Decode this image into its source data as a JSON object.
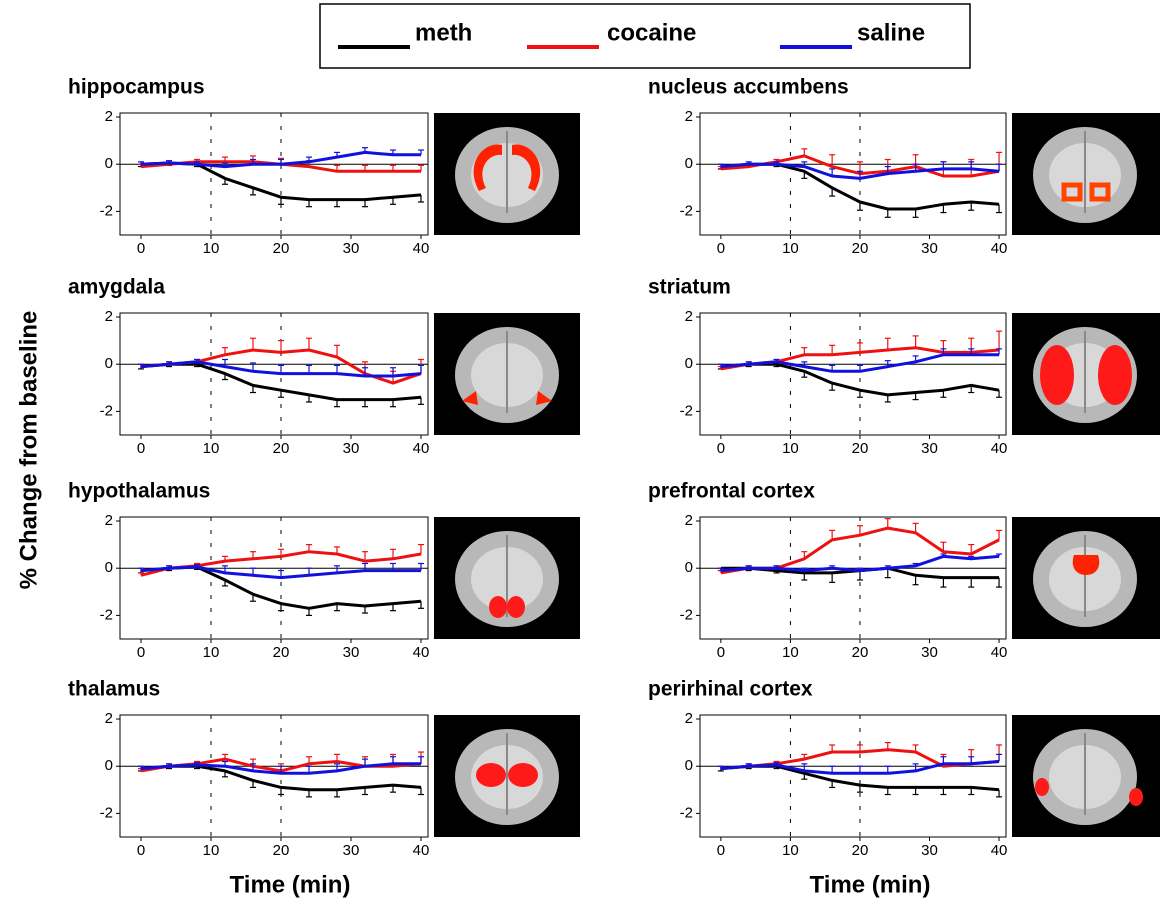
{
  "legend": [
    {
      "name": "meth",
      "color": "#000000"
    },
    {
      "name": "cocaine",
      "color": "#ee1111"
    },
    {
      "name": "saline",
      "color": "#1111dd"
    }
  ],
  "y_label": "% Change from baseline",
  "x_label": "Time (min)",
  "chart_data": [
    {
      "type": "line",
      "title": "hippocampus",
      "x": [
        0,
        4,
        8,
        12,
        16,
        20,
        24,
        28,
        32,
        36,
        40
      ],
      "xlim": [
        -3,
        41
      ],
      "ylim": [
        -3,
        2
      ],
      "xticks": [
        0,
        10,
        20,
        30,
        40
      ],
      "yticks": [
        -2,
        0,
        2
      ],
      "vlines": [
        10,
        20
      ],
      "series": [
        {
          "values": [
            0,
            0.05,
            0,
            -0.6,
            -1.0,
            -1.4,
            -1.5,
            -1.5,
            -1.5,
            -1.4,
            -1.3
          ],
          "errors": [
            0.1,
            0.1,
            0.1,
            0.25,
            0.3,
            0.3,
            0.3,
            0.3,
            0.3,
            0.3,
            0.3
          ]
        },
        {
          "values": [
            -0.1,
            0,
            0.1,
            0.1,
            0.1,
            0,
            -0.1,
            -0.3,
            -0.3,
            -0.3,
            -0.3
          ],
          "errors": [
            0.1,
            0.1,
            0.1,
            0.2,
            0.25,
            0.25,
            0.25,
            0.25,
            0.25,
            0.25,
            0.25
          ]
        },
        {
          "values": [
            0,
            0.05,
            0,
            -0.1,
            0,
            0,
            0.1,
            0.3,
            0.5,
            0.4,
            0.4
          ],
          "errors": [
            0.1,
            0.1,
            0.1,
            0.15,
            0.2,
            0.2,
            0.2,
            0.2,
            0.2,
            0.2,
            0.2
          ]
        }
      ]
    },
    {
      "type": "line",
      "title": "nucleus accumbens",
      "x": [
        0,
        4,
        8,
        12,
        16,
        20,
        24,
        28,
        32,
        36,
        40
      ],
      "xlim": [
        -3,
        41
      ],
      "ylim": [
        -3,
        2
      ],
      "xticks": [
        0,
        10,
        20,
        30,
        40
      ],
      "yticks": [
        -2,
        0,
        2
      ],
      "vlines": [
        10,
        20
      ],
      "series": [
        {
          "values": [
            -0.1,
            0,
            0,
            -0.3,
            -1.0,
            -1.6,
            -1.9,
            -1.9,
            -1.7,
            -1.6,
            -1.7
          ],
          "errors": [
            0.1,
            0.1,
            0.1,
            0.3,
            0.35,
            0.35,
            0.35,
            0.35,
            0.35,
            0.35,
            0.35
          ]
        },
        {
          "values": [
            -0.2,
            -0.1,
            0.1,
            0.35,
            -0.1,
            -0.4,
            -0.3,
            -0.1,
            -0.5,
            -0.5,
            -0.3
          ],
          "errors": [
            0.1,
            0.1,
            0.1,
            0.3,
            0.5,
            0.5,
            0.5,
            0.5,
            0.6,
            0.7,
            0.8
          ]
        },
        {
          "values": [
            -0.1,
            0,
            0,
            -0.1,
            -0.5,
            -0.6,
            -0.4,
            -0.3,
            -0.2,
            -0.2,
            -0.3
          ],
          "errors": [
            0.1,
            0.1,
            0.1,
            0.2,
            0.3,
            0.3,
            0.3,
            0.3,
            0.3,
            0.3,
            0.3
          ]
        }
      ]
    },
    {
      "type": "line",
      "title": "amygdala",
      "x": [
        0,
        4,
        8,
        12,
        16,
        20,
        24,
        28,
        32,
        36,
        40
      ],
      "xlim": [
        -3,
        41
      ],
      "ylim": [
        -3,
        2
      ],
      "xticks": [
        0,
        10,
        20,
        30,
        40
      ],
      "yticks": [
        -2,
        0,
        2
      ],
      "vlines": [
        10,
        20
      ],
      "series": [
        {
          "values": [
            -0.1,
            0,
            0,
            -0.4,
            -0.9,
            -1.1,
            -1.3,
            -1.5,
            -1.5,
            -1.5,
            -1.4
          ],
          "errors": [
            0.1,
            0.1,
            0.1,
            0.25,
            0.3,
            0.3,
            0.3,
            0.3,
            0.3,
            0.3,
            0.3
          ]
        },
        {
          "values": [
            -0.1,
            0,
            0.1,
            0.4,
            0.6,
            0.5,
            0.6,
            0.3,
            -0.4,
            -0.8,
            -0.4
          ],
          "errors": [
            0.1,
            0.1,
            0.1,
            0.3,
            0.5,
            0.5,
            0.5,
            0.5,
            0.5,
            0.5,
            0.6
          ]
        },
        {
          "values": [
            -0.1,
            0,
            0.1,
            -0.1,
            -0.3,
            -0.4,
            -0.4,
            -0.4,
            -0.5,
            -0.5,
            -0.4
          ],
          "errors": [
            0.1,
            0.1,
            0.1,
            0.3,
            0.35,
            0.35,
            0.35,
            0.35,
            0.35,
            0.35,
            0.35
          ]
        }
      ]
    },
    {
      "type": "line",
      "title": "striatum",
      "x": [
        0,
        4,
        8,
        12,
        16,
        20,
        24,
        28,
        32,
        36,
        40
      ],
      "xlim": [
        -3,
        41
      ],
      "ylim": [
        -3,
        2
      ],
      "xticks": [
        0,
        10,
        20,
        30,
        40
      ],
      "yticks": [
        -2,
        0,
        2
      ],
      "vlines": [
        10,
        20
      ],
      "series": [
        {
          "values": [
            -0.1,
            0,
            0,
            -0.3,
            -0.8,
            -1.1,
            -1.3,
            -1.2,
            -1.1,
            -0.9,
            -1.1
          ],
          "errors": [
            0.1,
            0.1,
            0.1,
            0.25,
            0.3,
            0.3,
            0.3,
            0.3,
            0.3,
            0.3,
            0.3
          ]
        },
        {
          "values": [
            -0.2,
            0,
            0.1,
            0.4,
            0.4,
            0.5,
            0.6,
            0.7,
            0.5,
            0.5,
            0.6
          ],
          "errors": [
            0.1,
            0.1,
            0.1,
            0.3,
            0.4,
            0.4,
            0.5,
            0.5,
            0.5,
            0.6,
            0.8
          ]
        },
        {
          "values": [
            -0.1,
            0,
            0.1,
            -0.1,
            -0.3,
            -0.3,
            -0.1,
            0.1,
            0.4,
            0.4,
            0.4
          ],
          "errors": [
            0.1,
            0.1,
            0.1,
            0.2,
            0.25,
            0.25,
            0.25,
            0.25,
            0.25,
            0.25,
            0.25
          ]
        }
      ]
    },
    {
      "type": "line",
      "title": "hypothalamus",
      "x": [
        0,
        4,
        8,
        12,
        16,
        20,
        24,
        28,
        32,
        36,
        40
      ],
      "xlim": [
        -3,
        41
      ],
      "ylim": [
        -3,
        2
      ],
      "xticks": [
        0,
        10,
        20,
        30,
        40
      ],
      "yticks": [
        -2,
        0,
        2
      ],
      "vlines": [
        10,
        20
      ],
      "series": [
        {
          "values": [
            -0.1,
            0,
            0.05,
            -0.5,
            -1.1,
            -1.5,
            -1.7,
            -1.5,
            -1.6,
            -1.5,
            -1.4
          ],
          "errors": [
            0.1,
            0.1,
            0.1,
            0.25,
            0.3,
            0.3,
            0.3,
            0.3,
            0.3,
            0.3,
            0.3
          ]
        },
        {
          "values": [
            -0.3,
            0,
            0.1,
            0.3,
            0.4,
            0.5,
            0.7,
            0.6,
            0.3,
            0.4,
            0.6
          ],
          "errors": [
            0.1,
            0.1,
            0.1,
            0.2,
            0.3,
            0.3,
            0.3,
            0.3,
            0.4,
            0.4,
            0.4
          ]
        },
        {
          "values": [
            -0.1,
            0,
            0.05,
            -0.2,
            -0.3,
            -0.4,
            -0.3,
            -0.2,
            -0.1,
            -0.1,
            -0.1
          ],
          "errors": [
            0.1,
            0.1,
            0.1,
            0.3,
            0.3,
            0.3,
            0.3,
            0.3,
            0.3,
            0.3,
            0.3
          ]
        }
      ]
    },
    {
      "type": "line",
      "title": "prefrontal cortex",
      "x": [
        0,
        4,
        8,
        12,
        16,
        20,
        24,
        28,
        32,
        36,
        40
      ],
      "xlim": [
        -3,
        41
      ],
      "ylim": [
        -3,
        2
      ],
      "xticks": [
        0,
        10,
        20,
        30,
        40
      ],
      "yticks": [
        -2,
        0,
        2
      ],
      "vlines": [
        10,
        20
      ],
      "series": [
        {
          "values": [
            0,
            0,
            -0.1,
            -0.2,
            -0.2,
            -0.1,
            0,
            -0.3,
            -0.4,
            -0.4,
            -0.4
          ],
          "errors": [
            0.1,
            0.1,
            0.1,
            0.3,
            0.4,
            0.4,
            0.4,
            0.4,
            0.4,
            0.4,
            0.4
          ]
        },
        {
          "values": [
            -0.2,
            0,
            0,
            0.4,
            1.2,
            1.4,
            1.7,
            1.5,
            0.7,
            0.6,
            1.2
          ],
          "errors": [
            0.1,
            0.1,
            0.1,
            0.3,
            0.4,
            0.4,
            0.4,
            0.4,
            0.4,
            0.4,
            0.4
          ]
        },
        {
          "values": [
            -0.1,
            0,
            0,
            -0.1,
            0,
            -0.1,
            0,
            0.1,
            0.5,
            0.4,
            0.5
          ],
          "errors": [
            0.1,
            0.1,
            0.1,
            0.1,
            0.1,
            0.1,
            0.1,
            0.1,
            0.1,
            0.1,
            0.1
          ]
        }
      ]
    },
    {
      "type": "line",
      "title": "thalamus",
      "x": [
        0,
        4,
        8,
        12,
        16,
        20,
        24,
        28,
        32,
        36,
        40
      ],
      "xlim": [
        -3,
        41
      ],
      "ylim": [
        -3,
        2
      ],
      "xticks": [
        0,
        10,
        20,
        30,
        40
      ],
      "yticks": [
        -2,
        0,
        2
      ],
      "vlines": [
        10,
        20
      ],
      "series": [
        {
          "values": [
            -0.1,
            0,
            0,
            -0.2,
            -0.6,
            -0.9,
            -1.0,
            -1.0,
            -0.9,
            -0.8,
            -0.9
          ],
          "errors": [
            0.1,
            0.1,
            0.1,
            0.25,
            0.3,
            0.3,
            0.3,
            0.3,
            0.3,
            0.3,
            0.3
          ]
        },
        {
          "values": [
            -0.2,
            0,
            0.1,
            0.3,
            0,
            -0.2,
            0.1,
            0.2,
            0,
            0,
            0.1
          ],
          "errors": [
            0.1,
            0.1,
            0.1,
            0.2,
            0.3,
            0.3,
            0.3,
            0.3,
            0.4,
            0.5,
            0.5
          ]
        },
        {
          "values": [
            -0.1,
            0,
            0.05,
            0,
            -0.2,
            -0.3,
            -0.3,
            -0.2,
            0,
            0.1,
            0.1
          ],
          "errors": [
            0.1,
            0.1,
            0.1,
            0.2,
            0.3,
            0.3,
            0.3,
            0.3,
            0.3,
            0.3,
            0.3
          ]
        }
      ]
    },
    {
      "type": "line",
      "title": "perirhinal cortex",
      "x": [
        0,
        4,
        8,
        12,
        16,
        20,
        24,
        28,
        32,
        36,
        40
      ],
      "xlim": [
        -3,
        41
      ],
      "ylim": [
        -3,
        2
      ],
      "xticks": [
        0,
        10,
        20,
        30,
        40
      ],
      "yticks": [
        -2,
        0,
        2
      ],
      "vlines": [
        10,
        20
      ],
      "series": [
        {
          "values": [
            -0.1,
            0,
            0,
            -0.3,
            -0.6,
            -0.8,
            -0.9,
            -0.9,
            -0.9,
            -0.9,
            -1.0
          ],
          "errors": [
            0.1,
            0.1,
            0.1,
            0.25,
            0.3,
            0.3,
            0.3,
            0.3,
            0.3,
            0.3,
            0.3
          ]
        },
        {
          "values": [
            -0.1,
            0,
            0.1,
            0.3,
            0.6,
            0.6,
            0.7,
            0.6,
            0,
            0.1,
            0.2
          ],
          "errors": [
            0.1,
            0.1,
            0.1,
            0.2,
            0.3,
            0.3,
            0.3,
            0.3,
            0.5,
            0.6,
            0.7
          ]
        },
        {
          "values": [
            -0.1,
            0,
            0.05,
            -0.2,
            -0.3,
            -0.3,
            -0.3,
            -0.2,
            0.1,
            0.1,
            0.2
          ],
          "errors": [
            0.1,
            0.1,
            0.1,
            0.3,
            0.3,
            0.3,
            0.3,
            0.3,
            0.3,
            0.3,
            0.3
          ]
        }
      ]
    }
  ]
}
